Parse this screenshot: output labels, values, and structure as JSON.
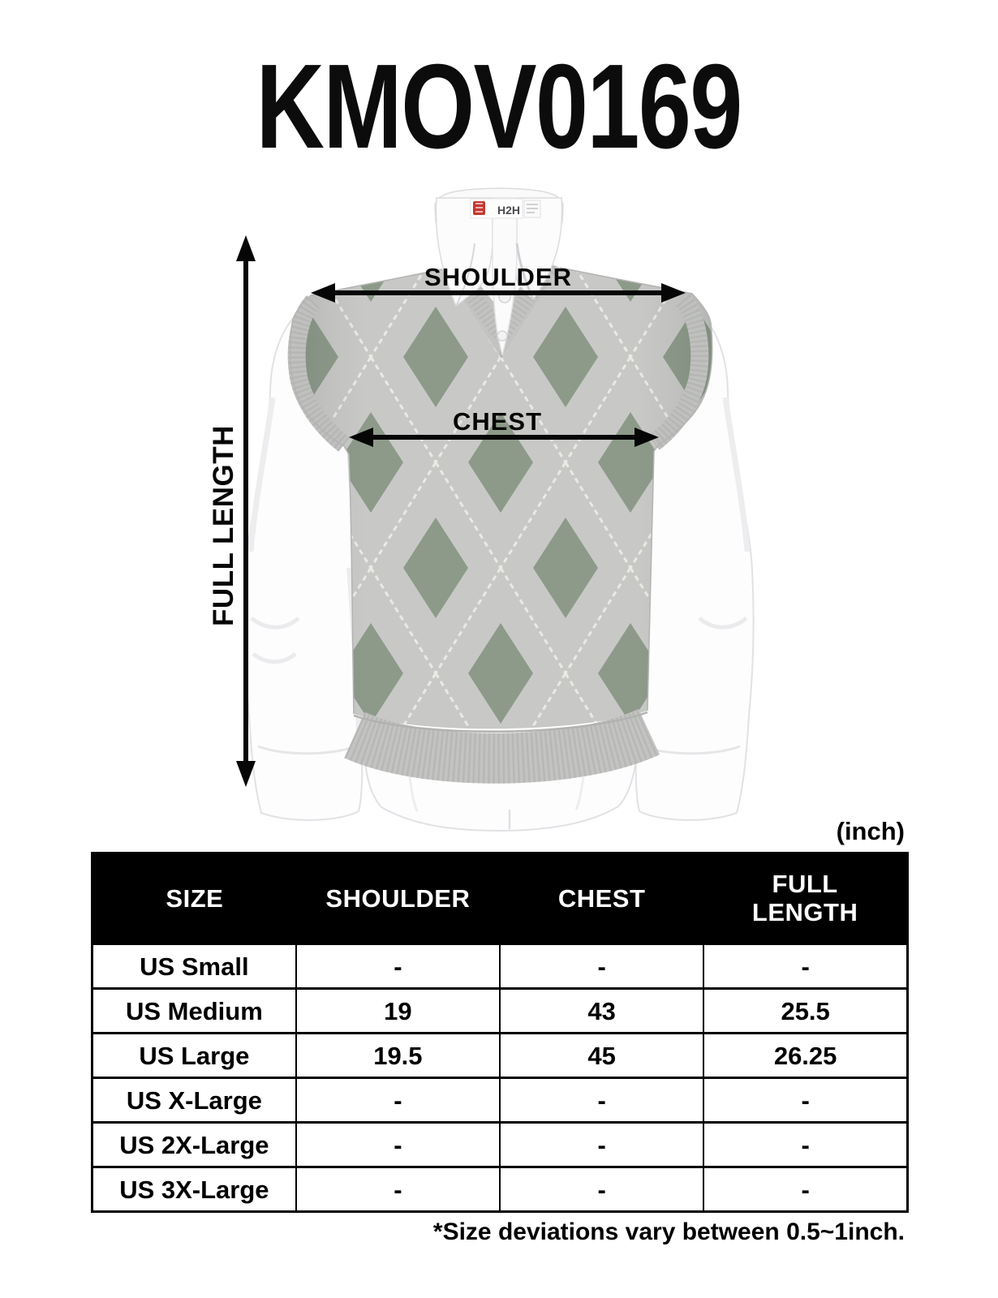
{
  "page": {
    "title": "KMOV0169",
    "unit_label": "(inch)",
    "footnote": "*Size deviations vary between 0.5~1inch."
  },
  "diagram": {
    "garment": "argyle v-neck sweater vest over white dress shirt",
    "labels": {
      "shoulder": "SHOULDER",
      "chest": "CHEST",
      "full_length": "FULL LENGTH"
    },
    "collar_tag": {
      "brand": "H2H"
    }
  },
  "size_table": {
    "columns": [
      "SIZE",
      "SHOULDER",
      "CHEST",
      "FULL LENGTH"
    ],
    "rows": [
      {
        "size": "US Small",
        "shoulder": "-",
        "chest": "-",
        "full_length": "-"
      },
      {
        "size": "US Medium",
        "shoulder": "19",
        "chest": "43",
        "full_length": "25.5"
      },
      {
        "size": "US Large",
        "shoulder": "19.5",
        "chest": "45",
        "full_length": "26.25"
      },
      {
        "size": "US X-Large",
        "shoulder": "-",
        "chest": "-",
        "full_length": "-"
      },
      {
        "size": "US 2X-Large",
        "shoulder": "-",
        "chest": "-",
        "full_length": "-"
      },
      {
        "size": "US 3X-Large",
        "shoulder": "-",
        "chest": "-",
        "full_length": "-"
      }
    ]
  },
  "colors": {
    "vest_gray": "#c8c9c7",
    "argyle_green": "#8d9a8a",
    "stitch_white": "#ebe9e3",
    "trim_gray": "#c3c4c2",
    "rib_dark": "#a9aaa8",
    "arrow_black": "#060606",
    "table_header_bg": "#000000",
    "table_header_text": "#ffffff",
    "shirt_white": "#fdfdfe"
  }
}
